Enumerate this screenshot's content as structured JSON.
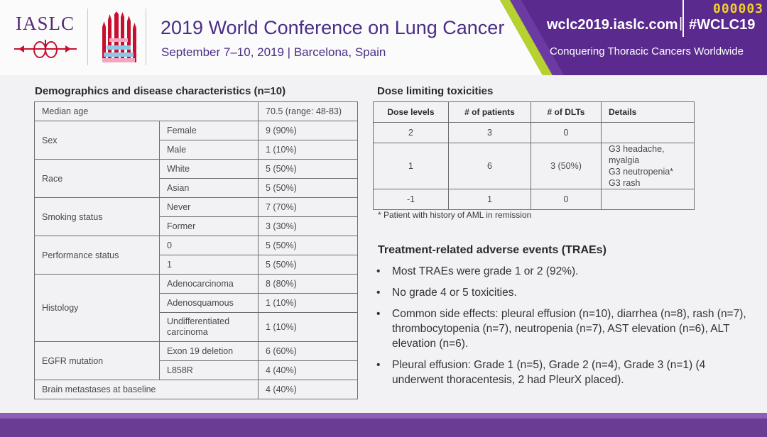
{
  "header": {
    "org": "IASLC",
    "title": "2019 World Conference on Lung Cancer",
    "date_location": "September 7–10, 2019 | Barcelona, Spain",
    "website": "wclc2019.iaslc.com",
    "hashtag": "#WCLC19",
    "slogan": "Conquering Thoracic Cancers Worldwide",
    "counter": "000003",
    "colors": {
      "purple": "#4b2d86",
      "banner": "#5a2a8e",
      "accent_green": "#b6d22e",
      "counter": "#f2d12e"
    }
  },
  "demographics": {
    "title": "Demographics and disease characteristics (n=10)",
    "median_age": {
      "label": "Median age",
      "value": "70.5 (range: 48-83)"
    },
    "sex": {
      "label": "Sex",
      "rows": [
        {
          "sub": "Female",
          "value": "9 (90%)"
        },
        {
          "sub": "Male",
          "value": "1 (10%)"
        }
      ]
    },
    "race": {
      "label": "Race",
      "rows": [
        {
          "sub": "White",
          "value": "5 (50%)"
        },
        {
          "sub": "Asian",
          "value": "5 (50%)"
        }
      ]
    },
    "smoking": {
      "label": "Smoking status",
      "rows": [
        {
          "sub": "Never",
          "value": "7 (70%)"
        },
        {
          "sub": "Former",
          "value": "3 (30%)"
        }
      ]
    },
    "performance": {
      "label": "Performance status",
      "rows": [
        {
          "sub": "0",
          "value": "5 (50%)"
        },
        {
          "sub": "1",
          "value": "5 (50%)"
        }
      ]
    },
    "histology": {
      "label": "Histology",
      "rows": [
        {
          "sub": "Adenocarcinoma",
          "value": "8 (80%)"
        },
        {
          "sub": "Adenosquamous",
          "value": "1 (10%)"
        },
        {
          "sub": "Undifferentiated carcinoma",
          "value": "1 (10%)"
        }
      ]
    },
    "egfr": {
      "label": "EGFR mutation",
      "rows": [
        {
          "sub": "Exon 19 deletion",
          "value": "6 (60%)"
        },
        {
          "sub": "L858R",
          "value": "4 (40%)"
        }
      ]
    },
    "brain": {
      "label": "Brain metastases at baseline",
      "value": "4 (40%)"
    }
  },
  "dlt": {
    "title": "Dose limiting toxicities",
    "headers": {
      "dose": "Dose levels",
      "patients": "# of patients",
      "dlts": "# of DLTs",
      "details": "Details"
    },
    "rows": [
      {
        "dose": "2",
        "patients": "3",
        "dlts": "0",
        "details": []
      },
      {
        "dose": "1",
        "patients": "6",
        "dlts": "3 (50%)",
        "details": [
          "G3 headache, myalgia",
          "G3 neutropenia*",
          "G3 rash"
        ]
      },
      {
        "dose": "-1",
        "patients": "1",
        "dlts": "0",
        "details": []
      }
    ],
    "footnote": "* Patient with history of AML in remission"
  },
  "traes": {
    "title": "Treatment-related adverse events (TRAEs)",
    "bullets": [
      "Most TRAEs were grade 1 or 2 (92%).",
      "No grade 4 or 5 toxicities.",
      "Common side effects: pleural effusion (n=10), diarrhea (n=8), rash (n=7), thrombocytopenia (n=7), neutropenia (n=7), AST elevation (n=6), ALT elevation (n=6).",
      "Pleural effusion: Grade 1 (n=5), Grade 2 (n=4), Grade 3 (n=1) (4 underwent thoracentesis, 2 had PleurX placed)."
    ]
  }
}
